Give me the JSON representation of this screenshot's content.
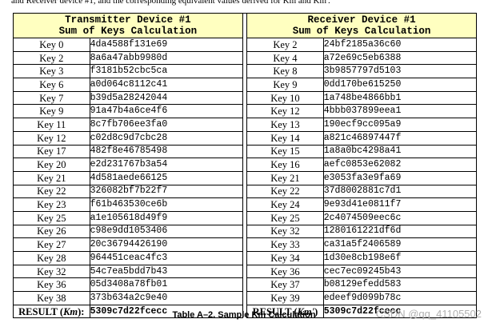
{
  "intro_text": "and Receiver device #1, and the corresponding equivalent values derived for Km and Km'.",
  "table": {
    "tx_header_line1": "Transmitter Device #1",
    "tx_header_line2": "Sum of Keys Calculation",
    "rx_header_line1": "Receiver Device #1",
    "rx_header_line2": "Sum of Keys Calculation",
    "rows": [
      {
        "tx_key": "Key 0",
        "tx_val": "4da4588f131e69",
        "rx_key": "Key 2",
        "rx_val": "24bf2185a36c60"
      },
      {
        "tx_key": "Key 2",
        "tx_val": "8a6a47abb9980d",
        "rx_key": "Key 4",
        "rx_val": "a72e69c5eb6388"
      },
      {
        "tx_key": "Key 3",
        "tx_val": "f3181b52cbc5ca",
        "rx_key": "Key 8",
        "rx_val": "3b9857797d5103"
      },
      {
        "tx_key": "Key 6",
        "tx_val": "a0d064c8112c41",
        "rx_key": "Key 9",
        "rx_val": "0dd170be615250"
      },
      {
        "tx_key": "Key 7",
        "tx_val": "b39d5a28242044",
        "rx_key": "Key 10",
        "rx_val": "1a748be4866bb1"
      },
      {
        "tx_key": "Key 9",
        "tx_val": "91a47b4a6ce4f6",
        "rx_key": "Key 12",
        "rx_val": "4bbb037899eea1"
      },
      {
        "tx_key": "Key 11",
        "tx_val": "8c7fb706ee3fa0",
        "rx_key": "Key 13",
        "rx_val": "190ecf9cc095a9"
      },
      {
        "tx_key": "Key 12",
        "tx_val": "c02d8c9d7cbc28",
        "rx_key": "Key 14",
        "rx_val": "a821c46897447f"
      },
      {
        "tx_key": "Key 17",
        "tx_val": "482f8e46785498",
        "rx_key": "Key 15",
        "rx_val": "1a8a0bc4298a41"
      },
      {
        "tx_key": "Key 20",
        "tx_val": "e2d231767b3a54",
        "rx_key": "Key 16",
        "rx_val": "aefc0853e62082"
      },
      {
        "tx_key": "Key 21",
        "tx_val": "4d581aede66125",
        "rx_key": "Key 21",
        "rx_val": "e3053fa3e9fa69"
      },
      {
        "tx_key": "Key 22",
        "tx_val": "326082bf7b22f7",
        "rx_key": "Key 22",
        "rx_val": "37d8002881c7d1"
      },
      {
        "tx_key": "Key 23",
        "tx_val": "f61b463530ce6b",
        "rx_key": "Key 24",
        "rx_val": "9e93d41e0811f7"
      },
      {
        "tx_key": "Key 25",
        "tx_val": "a1e105618d49f9",
        "rx_key": "Key 25",
        "rx_val": "2c4074509eec6c"
      },
      {
        "tx_key": "Key 26",
        "tx_val": "c98e9dd1053406",
        "rx_key": "Key 32",
        "rx_val": "1280161221df6d"
      },
      {
        "tx_key": "Key 27",
        "tx_val": "20c36794426190",
        "rx_key": "Key 33",
        "rx_val": "ca31a5f2406589"
      },
      {
        "tx_key": "Key 28",
        "tx_val": "964451ceac4fc3",
        "rx_key": "Key 34",
        "rx_val": "1d30e8cb198e6f"
      },
      {
        "tx_key": "Key 32",
        "tx_val": "54c7ea5bdd7b43",
        "rx_key": "Key 36",
        "rx_val": "cec7ec09245b43"
      },
      {
        "tx_key": "Key 36",
        "tx_val": "05d3408a78fb01",
        "rx_key": "Key 37",
        "rx_val": "b08129efedd583"
      },
      {
        "tx_key": "Key 38",
        "tx_val": "373b634a2c9e40",
        "rx_key": "Key 39",
        "rx_val": "edeef9d099b78c"
      }
    ],
    "tx_result_prefix": "RESULT (",
    "tx_result_var": "Km",
    "tx_result_suffix": "):",
    "tx_result_value": "5309c7d22fcecc",
    "rx_result_prefix": "RESULT (",
    "rx_result_var": "Km'",
    "rx_result_suffix": ")",
    "rx_result_value": "5309c7d22fcecc"
  },
  "caption": "Table A–2. Sample Km Calculation",
  "watermark": "CSDN @qq_41105502"
}
